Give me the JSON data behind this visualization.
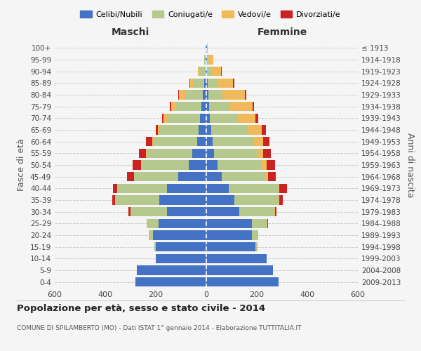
{
  "age_groups": [
    "0-4",
    "5-9",
    "10-14",
    "15-19",
    "20-24",
    "25-29",
    "30-34",
    "35-39",
    "40-44",
    "45-49",
    "50-54",
    "55-59",
    "60-64",
    "65-69",
    "70-74",
    "75-79",
    "80-84",
    "85-89",
    "90-94",
    "95-99",
    "100+"
  ],
  "birth_years": [
    "2009-2013",
    "2004-2008",
    "1999-2003",
    "1994-1998",
    "1989-1993",
    "1984-1988",
    "1979-1983",
    "1974-1978",
    "1969-1973",
    "1964-1968",
    "1959-1963",
    "1954-1958",
    "1949-1953",
    "1944-1948",
    "1939-1943",
    "1934-1938",
    "1929-1933",
    "1924-1928",
    "1919-1923",
    "1914-1918",
    "≤ 1913"
  ],
  "maschi": {
    "celibi": [
      280,
      275,
      200,
      200,
      210,
      190,
      155,
      185,
      155,
      110,
      70,
      55,
      35,
      30,
      25,
      20,
      14,
      8,
      4,
      2,
      2
    ],
    "coniugati": [
      0,
      0,
      0,
      5,
      15,
      45,
      145,
      175,
      195,
      175,
      185,
      180,
      175,
      155,
      130,
      100,
      70,
      45,
      20,
      5,
      2
    ],
    "vedovi": [
      0,
      0,
      0,
      0,
      2,
      0,
      0,
      0,
      2,
      2,
      2,
      3,
      5,
      8,
      15,
      20,
      25,
      12,
      8,
      2,
      0
    ],
    "divorziati": [
      0,
      0,
      0,
      0,
      2,
      2,
      8,
      12,
      18,
      28,
      35,
      30,
      25,
      8,
      5,
      5,
      2,
      2,
      0,
      0,
      0
    ]
  },
  "femmine": {
    "nubili": [
      285,
      265,
      240,
      195,
      180,
      180,
      130,
      110,
      90,
      60,
      45,
      30,
      25,
      20,
      15,
      12,
      8,
      6,
      4,
      2,
      2
    ],
    "coniugate": [
      0,
      0,
      0,
      8,
      25,
      60,
      140,
      175,
      195,
      175,
      175,
      170,
      165,
      145,
      110,
      80,
      55,
      35,
      15,
      5,
      2
    ],
    "vedove": [
      0,
      0,
      0,
      0,
      0,
      2,
      2,
      5,
      5,
      10,
      18,
      25,
      35,
      55,
      70,
      90,
      90,
      65,
      40,
      20,
      2
    ],
    "divorziate": [
      0,
      0,
      0,
      0,
      0,
      2,
      5,
      12,
      30,
      30,
      35,
      30,
      25,
      15,
      10,
      8,
      5,
      5,
      2,
      0,
      0
    ]
  },
  "colors": {
    "celibi": "#4472c4",
    "coniugati": "#b5c98e",
    "vedovi": "#f0b95a",
    "divorziati": "#cc2222"
  },
  "title": "Popolazione per età, sesso e stato civile - 2014",
  "subtitle": "COMUNE DI SPILAMBERTO (MO) - Dati ISTAT 1° gennaio 2014 - Elaborazione TUTTITALIA.IT",
  "xlabel_maschi": "Maschi",
  "xlabel_femmine": "Femmine",
  "ylabel_left": "Fasce di età",
  "ylabel_right": "Anni di nascita",
  "xlim": 600,
  "legend_labels": [
    "Celibi/Nubili",
    "Coniugati/e",
    "Vedovi/e",
    "Divorziati/e"
  ],
  "background_color": "#f5f5f5",
  "bar_height": 0.8
}
